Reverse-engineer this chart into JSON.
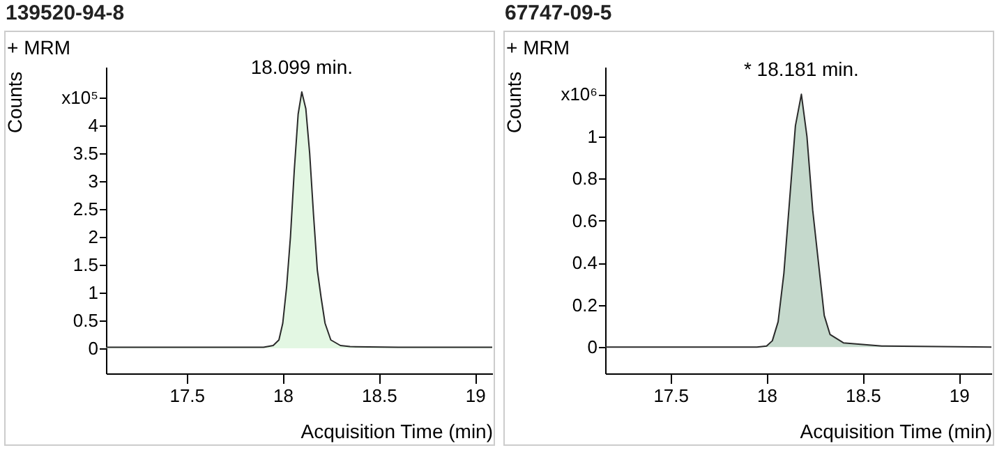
{
  "chart_data": [
    {
      "type": "area",
      "title": "139520-94-8",
      "subtitle": "+ MRM",
      "xlabel": "Acquisition Time (min)",
      "ylabel": "Counts",
      "annotations": [
        {
          "text": "18.099 min.",
          "x": 18.099,
          "y": 4.6
        }
      ],
      "series": [
        {
          "color": "#e3f7e3",
          "x": [
            17.08,
            17.5,
            17.9,
            17.95,
            17.98,
            18.0,
            18.02,
            18.04,
            18.06,
            18.08,
            18.099,
            18.12,
            18.14,
            18.16,
            18.18,
            18.2,
            18.22,
            18.25,
            18.3,
            18.35,
            18.6,
            19.09
          ],
          "values": [
            0.02,
            0.02,
            0.02,
            0.05,
            0.15,
            0.45,
            1.1,
            2.0,
            3.2,
            4.2,
            4.6,
            4.3,
            3.5,
            2.4,
            1.4,
            0.9,
            0.45,
            0.15,
            0.05,
            0.03,
            0.02,
            0.02
          ]
        }
      ],
      "xlim": [
        17.08,
        19.09
      ],
      "xticks": [
        17.5,
        18,
        18.5,
        19
      ],
      "ylim": [
        -0.45,
        5.05
      ],
      "yticks": [
        0,
        0.5,
        1,
        1.5,
        2,
        2.5,
        3,
        3.5,
        4,
        {
          "value": 4.5,
          "label": "x10⁵"
        }
      ]
    },
    {
      "type": "area",
      "title": "67747-09-5",
      "subtitle": "+ MRM",
      "xlabel": "Acquisition Time (min)",
      "ylabel": "Counts",
      "annotations": [
        {
          "text": "* 18.181 min.",
          "x": 18.181,
          "y": 1.2
        }
      ],
      "series": [
        {
          "color": "#c5d9cc",
          "x": [
            17.16,
            17.5,
            17.95,
            18.0,
            18.03,
            18.06,
            18.09,
            18.12,
            18.15,
            18.181,
            18.21,
            18.24,
            18.27,
            18.3,
            18.33,
            18.4,
            18.6,
            19.17
          ],
          "values": [
            0.0,
            0.0,
            0.0,
            0.005,
            0.03,
            0.12,
            0.35,
            0.7,
            1.05,
            1.2,
            1.0,
            0.65,
            0.4,
            0.15,
            0.06,
            0.02,
            0.005,
            0.0
          ]
        }
      ],
      "xlim": [
        17.16,
        19.17
      ],
      "xticks": [
        17.5,
        18,
        18.5,
        19
      ],
      "ylim": [
        -0.125,
        1.33
      ],
      "yticks": [
        0,
        0.2,
        0.4,
        0.6,
        0.8,
        1,
        {
          "value": 1.2,
          "label": "x10⁶"
        }
      ]
    }
  ]
}
